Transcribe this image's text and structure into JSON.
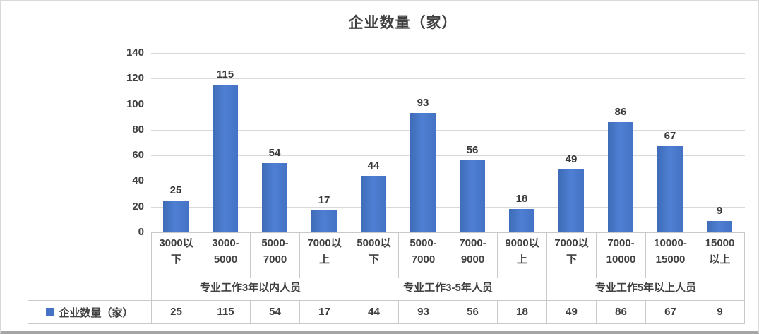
{
  "chart_data": {
    "type": "bar",
    "title": "企业数量（家）",
    "ylabel": "",
    "ylim": [
      0,
      140
    ],
    "y_ticks": [
      0,
      20,
      40,
      60,
      80,
      100,
      120,
      140
    ],
    "grid": true,
    "legend_position": "bottom",
    "bar_color": "#4472C4",
    "bar_color_dark": "#3E6CB7",
    "bar_color_light": "#4F7FD3",
    "grid_color": "#D9D9D9",
    "text_color": "#404040",
    "table_border_color": "#C9C9C9",
    "series": [
      {
        "name": "企业数量（家）",
        "values": [
          25,
          115,
          54,
          17,
          44,
          93,
          56,
          18,
          49,
          86,
          67,
          9
        ]
      }
    ],
    "categories": [
      "3000以下",
      "3000-5000",
      "5000-7000",
      "7000以上",
      "5000以下",
      "5000-7000",
      "7000-9000",
      "9000以上",
      "7000以下",
      "7000-10000",
      "10000-15000",
      "15000以上"
    ],
    "groups": [
      {
        "label": "专业工作3年以内人员",
        "categories": [
          "3000以下",
          "3000-5000",
          "5000-7000",
          "7000以上"
        ],
        "category_lines": [
          [
            "3000以",
            "下"
          ],
          [
            "3000-",
            "5000"
          ],
          [
            "5000-",
            "7000"
          ],
          [
            "7000以",
            "上"
          ]
        ],
        "values": [
          25,
          115,
          54,
          17
        ]
      },
      {
        "label": "专业工作3-5年人员",
        "categories": [
          "5000以下",
          "5000-7000",
          "7000-9000",
          "9000以上"
        ],
        "category_lines": [
          [
            "5000以",
            "下"
          ],
          [
            "5000-",
            "7000"
          ],
          [
            "7000-",
            "9000"
          ],
          [
            "9000以",
            "上"
          ]
        ],
        "values": [
          44,
          93,
          56,
          18
        ]
      },
      {
        "label": "专业工作5年以上人员",
        "categories": [
          "7000以下",
          "7000-10000",
          "10000-15000",
          "15000以上"
        ],
        "category_lines": [
          [
            "7000以",
            "下"
          ],
          [
            "7000-",
            "10000"
          ],
          [
            "10000-",
            "15000"
          ],
          [
            "15000",
            "以上"
          ]
        ],
        "values": [
          49,
          86,
          67,
          9
        ]
      }
    ],
    "data_table": {
      "row_label": "企业数量（家）",
      "values": [
        25,
        115,
        54,
        17,
        44,
        93,
        56,
        18,
        49,
        86,
        67,
        9
      ]
    }
  }
}
